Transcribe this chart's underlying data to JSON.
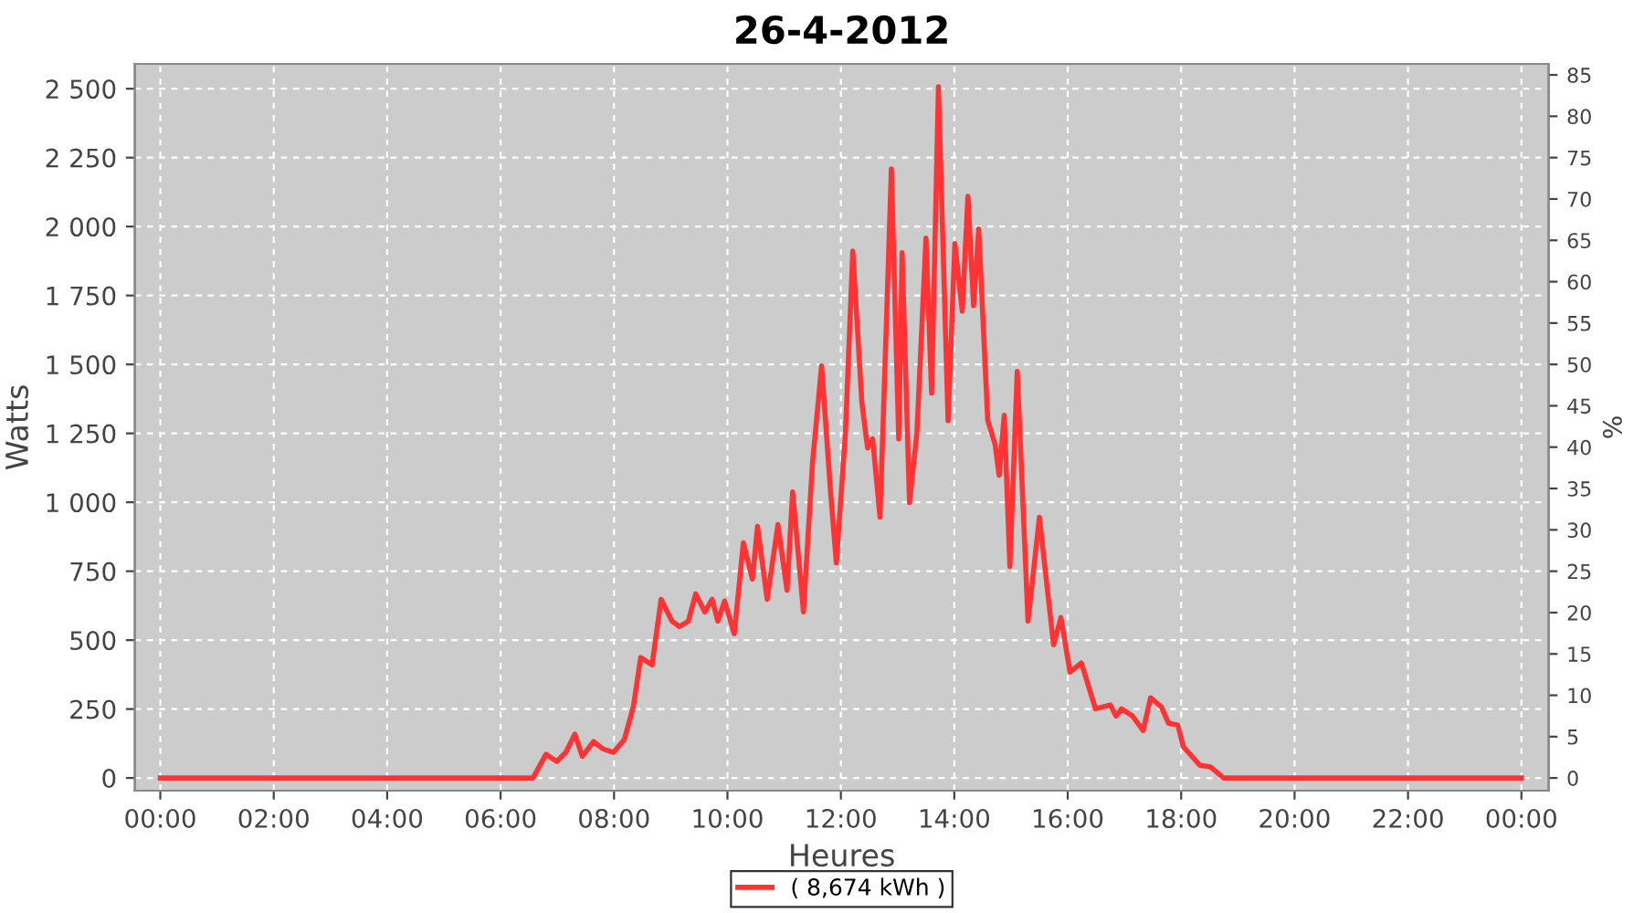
{
  "chart_data": {
    "type": "line",
    "title": "26-4-2012",
    "xlabel": "Heures",
    "ylabel": "Watts",
    "y2label": "%",
    "x": [
      0,
      6.57,
      6.8,
      6.99,
      7.15,
      7.31,
      7.44,
      7.64,
      7.8,
      7.99,
      8.18,
      8.34,
      8.47,
      8.67,
      8.83,
      9.02,
      9.15,
      9.31,
      9.44,
      9.6,
      9.73,
      9.83,
      9.95,
      10.12,
      10.28,
      10.44,
      10.53,
      10.7,
      10.89,
      11.05,
      11.15,
      11.34,
      11.5,
      11.66,
      11.82,
      11.92,
      12.08,
      12.21,
      12.37,
      12.47,
      12.56,
      12.69,
      12.82,
      12.89,
      13.02,
      13.08,
      13.21,
      13.34,
      13.5,
      13.6,
      13.72,
      13.89,
      14.01,
      14.14,
      14.24,
      14.34,
      14.43,
      14.59,
      14.72,
      14.79,
      14.88,
      14.98,
      15.11,
      15.3,
      15.5,
      15.75,
      15.88,
      16.04,
      16.24,
      16.49,
      16.75,
      16.85,
      16.95,
      17.14,
      17.33,
      17.46,
      17.65,
      17.78,
      17.94,
      18.04,
      18.33,
      18.52,
      18.75,
      24
    ],
    "series": [
      {
        "name": "( 8,674 kWh )",
        "color": "#ff3333",
        "values": [
          0,
          0,
          86,
          60,
          93,
          159,
          79,
          132,
          106,
          93,
          139,
          258,
          437,
          410,
          648,
          569,
          549,
          569,
          668,
          602,
          648,
          569,
          642,
          523,
          853,
          721,
          913,
          648,
          919,
          681,
          1038,
          602,
          1144,
          1495,
          1032,
          780,
          1250,
          1911,
          1362,
          1197,
          1230,
          946,
          1759,
          2209,
          1230,
          1905,
          999,
          1250,
          1958,
          1396,
          2507,
          1296,
          1938,
          1693,
          2110,
          1713,
          1991,
          1296,
          1210,
          1098,
          1316,
          767,
          1475,
          569,
          946,
          483,
          582,
          384,
          417,
          251,
          265,
          225,
          251,
          225,
          172,
          291,
          258,
          198,
          192,
          113,
          46,
          40,
          0,
          0
        ]
      }
    ],
    "xlim": [
      -0.45,
      24.48
    ],
    "xticks": [
      {
        "value": 0,
        "label": "00:00"
      },
      {
        "value": 2,
        "label": "02:00"
      },
      {
        "value": 4,
        "label": "04:00"
      },
      {
        "value": 6,
        "label": "06:00"
      },
      {
        "value": 8,
        "label": "08:00"
      },
      {
        "value": 10,
        "label": "10:00"
      },
      {
        "value": 12,
        "label": "12:00"
      },
      {
        "value": 14,
        "label": "14:00"
      },
      {
        "value": 16,
        "label": "16:00"
      },
      {
        "value": 18,
        "label": "18:00"
      },
      {
        "value": 20,
        "label": "20:00"
      },
      {
        "value": 22,
        "label": "22:00"
      },
      {
        "value": 24,
        "label": "00:00"
      }
    ],
    "ylim": [
      -46,
      2590
    ],
    "yticks": [
      0,
      250,
      500,
      750,
      {
        "value": 1000,
        "label": "1 000"
      },
      {
        "value": 1250,
        "label": "1 250"
      },
      {
        "value": 1500,
        "label": "1 500"
      },
      {
        "value": 1750,
        "label": "1 750"
      },
      {
        "value": 2000,
        "label": "2 000"
      },
      {
        "value": 2250,
        "label": "2 250"
      },
      {
        "value": 2500,
        "label": "2 500"
      }
    ],
    "y2lim": [
      -1.53,
      86.33
    ],
    "y2ticks": [
      0,
      5,
      10,
      15,
      20,
      25,
      30,
      35,
      40,
      45,
      50,
      55,
      60,
      65,
      70,
      75,
      80,
      85
    ],
    "grid": true,
    "legend": "bottom",
    "marker": "none",
    "line_style": "solid"
  }
}
